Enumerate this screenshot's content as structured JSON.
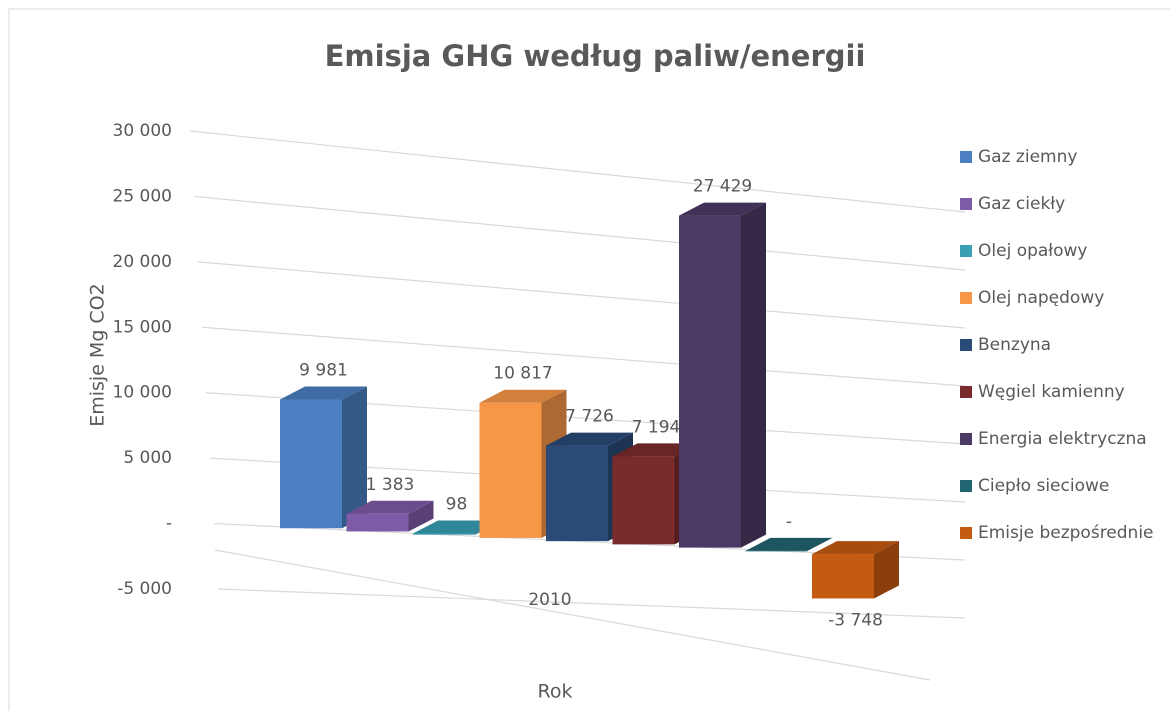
{
  "chart_data": {
    "type": "bar3d",
    "title": "Emisja GHG według paliw/energii",
    "x_label": "Rok",
    "y_label": "Emisje Mg CO2",
    "categories": [
      "2010"
    ],
    "series": [
      {
        "name": "Gaz ziemny",
        "color": "#4a7fc1",
        "values": [
          9981
        ],
        "value_labels": [
          "9 981"
        ]
      },
      {
        "name": "Gaz ciekły",
        "color": "#7e5ba6",
        "values": [
          1383
        ],
        "value_labels": [
          "1 383"
        ]
      },
      {
        "name": "Olej opałowy",
        "color": "#3a9fb5",
        "values": [
          98
        ],
        "value_labels": [
          "98"
        ]
      },
      {
        "name": "Olej napędowy",
        "color": "#f79646",
        "values": [
          10817
        ],
        "value_labels": [
          "10 817"
        ]
      },
      {
        "name": "Benzyna",
        "color": "#2a4a78",
        "values": [
          7726
        ],
        "value_labels": [
          "7 726"
        ]
      },
      {
        "name": "Węgiel kamienny",
        "color": "#7a2b2b",
        "values": [
          7194
        ],
        "value_labels": [
          "7 194"
        ]
      },
      {
        "name": "Energia elektryczna",
        "color": "#4b3a66",
        "values": [
          27429
        ],
        "value_labels": [
          "27 429"
        ]
      },
      {
        "name": "Ciepło sieciowe",
        "color": "#236570",
        "values": [
          0
        ],
        "value_labels": [
          "-"
        ]
      },
      {
        "name": "Emisje bezpośrednie",
        "color": "#c55a11",
        "values": [
          -3748
        ],
        "value_labels": [
          "-3 748"
        ]
      }
    ],
    "ylim": [
      -5000,
      30000
    ],
    "yticks": [
      {
        "value": -5000,
        "label": "-5 000"
      },
      {
        "value": 0,
        "label": "-"
      },
      {
        "value": 5000,
        "label": "5 000"
      },
      {
        "value": 10000,
        "label": "10 000"
      },
      {
        "value": 15000,
        "label": "15 000"
      },
      {
        "value": 20000,
        "label": "20 000"
      },
      {
        "value": 25000,
        "label": "25 000"
      },
      {
        "value": 30000,
        "label": "30 000"
      }
    ],
    "grid": true,
    "legend": "right"
  }
}
